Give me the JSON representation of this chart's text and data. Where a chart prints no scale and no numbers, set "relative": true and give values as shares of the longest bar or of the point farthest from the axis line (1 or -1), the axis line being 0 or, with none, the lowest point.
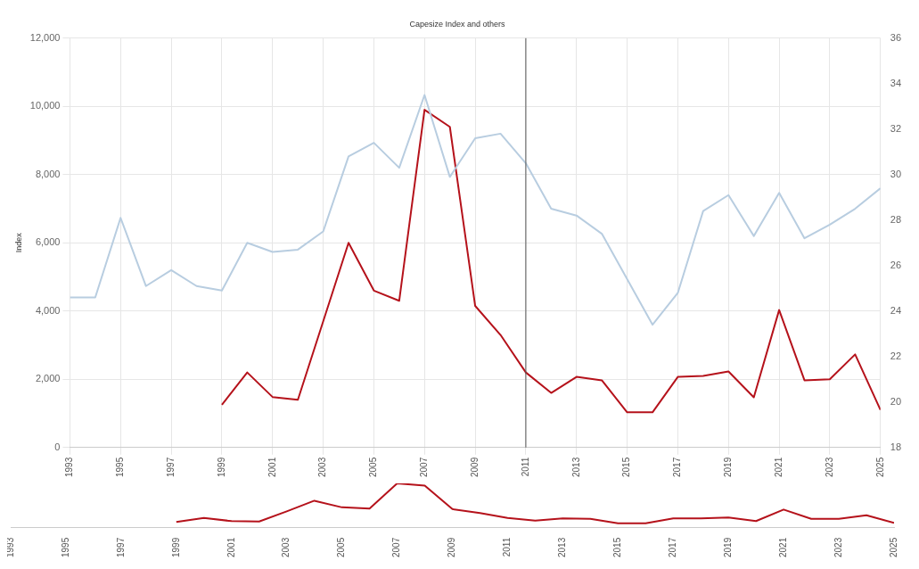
{
  "chart_data": [
    {
      "type": "line",
      "title": "Capesize Index and others",
      "ylabel": "Index",
      "xlim": [
        1993,
        2025
      ],
      "xticks": [
        1993,
        1995,
        1997,
        1999,
        2001,
        2003,
        2005,
        2007,
        2009,
        2011,
        2013,
        2015,
        2017,
        2019,
        2021,
        2023,
        2025
      ],
      "ylim": [
        0,
        12000
      ],
      "yticks": [
        0,
        {
          "value": 2000,
          "label": "2,000"
        },
        {
          "value": 4000,
          "label": "4,000"
        },
        {
          "value": 6000,
          "label": "6,000"
        },
        {
          "value": 8000,
          "label": "8,000"
        },
        {
          "value": 10000,
          "label": "10,000"
        },
        {
          "value": 12000,
          "label": "12,000"
        }
      ],
      "y2lim": [
        18,
        36
      ],
      "y2ticks": [
        18,
        20,
        22,
        24,
        26,
        28,
        30,
        32,
        34,
        36
      ],
      "grid": true,
      "marker": "none",
      "ref_lines": [
        {
          "axis": "x",
          "value": 2011,
          "color": "#555555"
        }
      ],
      "series": [
        {
          "color": "#b8cde0",
          "axis": "y2",
          "x": [
            1993,
            1994,
            1995,
            1996,
            1997,
            1998,
            1999,
            2000,
            2001,
            2002,
            2003,
            2004,
            2005,
            2006,
            2007,
            2008,
            2009,
            2010,
            2011,
            2012,
            2013,
            2014,
            2015,
            2016,
            2017,
            2018,
            2019,
            2020,
            2021,
            2022,
            2023,
            2024,
            2025
          ],
          "values": [
            24.6,
            24.6,
            28.1,
            25.1,
            25.8,
            25.1,
            24.9,
            27.0,
            26.6,
            26.7,
            27.5,
            30.8,
            31.4,
            30.3,
            33.5,
            29.9,
            31.6,
            31.8,
            30.5,
            28.5,
            28.2,
            27.4,
            25.4,
            23.4,
            24.8,
            28.4,
            29.1,
            27.3,
            29.2,
            27.2,
            27.8,
            28.5,
            29.4
          ]
        },
        {
          "color": "#b5121b",
          "x": [
            1999,
            2000,
            2001,
            2002,
            2003,
            2004,
            2005,
            2006,
            2007,
            2008,
            2009,
            2010,
            2011,
            2012,
            2013,
            2014,
            2015,
            2016,
            2017,
            2018,
            2019,
            2020,
            2021,
            2022,
            2023,
            2024,
            2025
          ],
          "values": [
            1250,
            2200,
            1480,
            1400,
            3700,
            6000,
            4600,
            4300,
            9900,
            9400,
            4150,
            3300,
            2200,
            1600,
            2070,
            1970,
            1030,
            1030,
            2070,
            2100,
            2230,
            1470,
            4030,
            1970,
            2000,
            2730,
            1100
          ]
        }
      ]
    },
    {
      "type": "line",
      "relative": true,
      "grid": false,
      "marker": "none",
      "tick_labels": "x",
      "xlim": [
        1993,
        2025
      ],
      "xticks": [
        1993,
        1995,
        1997,
        1999,
        2001,
        2003,
        2005,
        2007,
        2009,
        2011,
        2013,
        2015,
        2017,
        2019,
        2021,
        2023,
        2025
      ],
      "series": [
        {
          "color": "#b5121b",
          "x": [
            1999,
            2000,
            2001,
            2002,
            2003,
            2004,
            2005,
            2006,
            2007,
            2008,
            2009,
            2010,
            2011,
            2012,
            2013,
            2014,
            2015,
            2016,
            2017,
            2018,
            2019,
            2020,
            2021,
            2022,
            2023,
            2024,
            2025
          ],
          "values": [
            0.13,
            0.22,
            0.15,
            0.14,
            0.37,
            0.61,
            0.46,
            0.43,
            1,
            0.95,
            0.42,
            0.33,
            0.22,
            0.16,
            0.21,
            0.2,
            0.1,
            0.1,
            0.21,
            0.21,
            0.23,
            0.15,
            0.41,
            0.2,
            0.2,
            0.28,
            0.11
          ]
        }
      ]
    }
  ]
}
